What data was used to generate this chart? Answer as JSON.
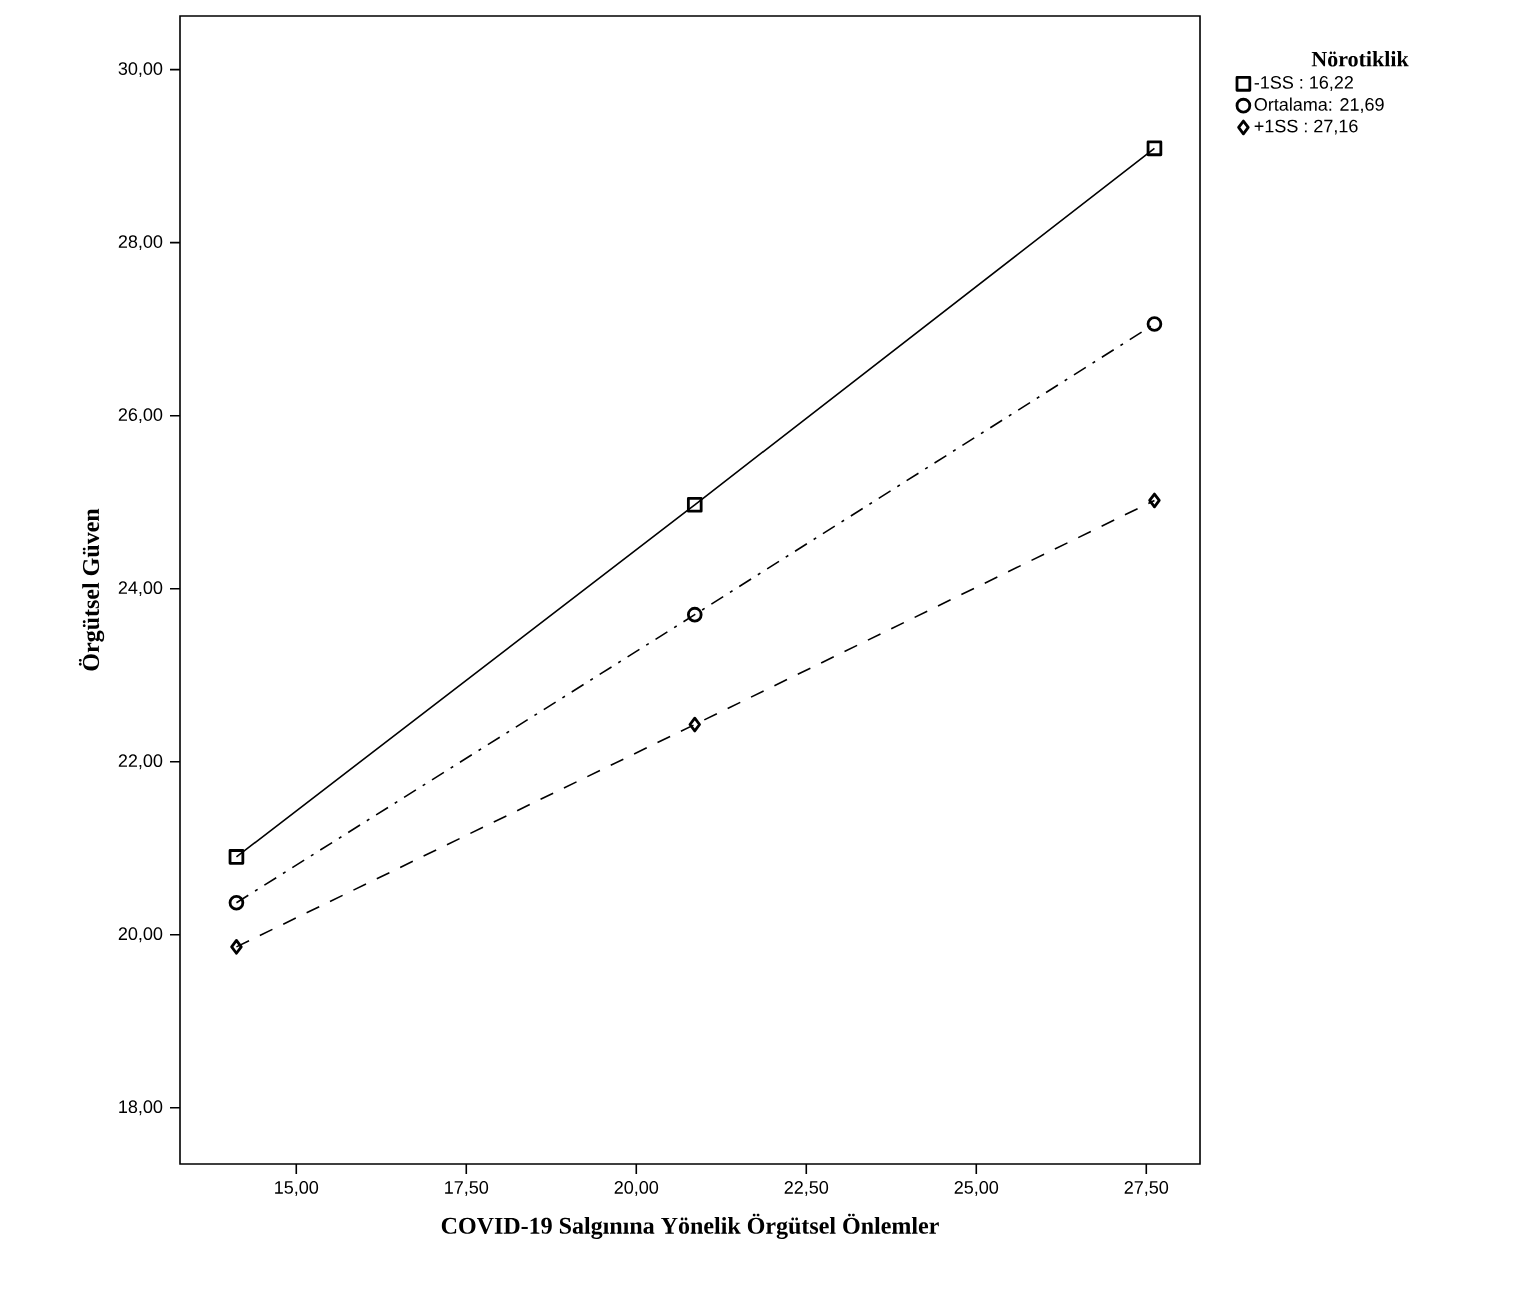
{
  "chart_data": {
    "type": "line",
    "xlabel": "COVID-19 Salgınına Yönelik Örgütsel Önlemler",
    "ylabel": "Örgütsel Güven",
    "legend_title": "Nörotiklik",
    "x": [
      14.12,
      20.86,
      27.62
    ],
    "series": [
      {
        "name": "-1SS : 16,22",
        "color": "#000000",
        "marker": "square",
        "line_style": "solid",
        "values": [
          20.9,
          24.97,
          29.09
        ]
      },
      {
        "name": "Ortalama: 21,69",
        "color": "#000000",
        "marker": "circle",
        "line_style": "dashdot",
        "values": [
          20.37,
          23.7,
          27.06
        ]
      },
      {
        "name": "+1SS : 27,16",
        "color": "#000000",
        "marker": "diamond",
        "line_style": "dashed",
        "values": [
          19.86,
          22.43,
          25.02
        ]
      }
    ],
    "xlim": [
      13.29,
      28.29
    ],
    "ylim": [
      17.35,
      30.62
    ],
    "xticks": [
      {
        "value": 15,
        "label": "15,00"
      },
      {
        "value": 17.5,
        "label": "17,50"
      },
      {
        "value": 20,
        "label": "20,00"
      },
      {
        "value": 22.5,
        "label": "22,50"
      },
      {
        "value": 25,
        "label": "25,00"
      },
      {
        "value": 27.5,
        "label": "27,50"
      }
    ],
    "yticks": [
      {
        "value": 18,
        "label": "18,00"
      },
      {
        "value": 20,
        "label": "20,00"
      },
      {
        "value": 22,
        "label": "22,00"
      },
      {
        "value": 24,
        "label": "24,00"
      },
      {
        "value": 26,
        "label": "26,00"
      },
      {
        "value": 28,
        "label": "28,00"
      },
      {
        "value": 30,
        "label": "30,00"
      }
    ],
    "legend": "top right",
    "grid": false
  }
}
